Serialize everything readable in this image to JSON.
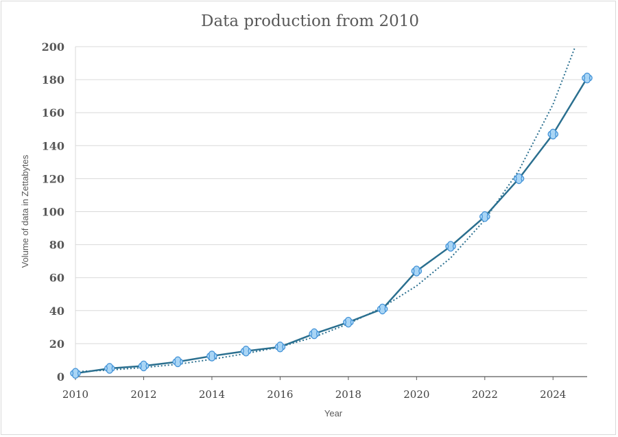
{
  "chart_data": {
    "type": "line",
    "title": "Data production from 2010",
    "xlabel": "Year",
    "ylabel": "Volume of data in Zettabytes",
    "xlim": [
      2010,
      2025
    ],
    "ylim": [
      0,
      200
    ],
    "x_ticks": [
      2010,
      2012,
      2014,
      2016,
      2018,
      2020,
      2022,
      2024
    ],
    "y_ticks": [
      0,
      20,
      40,
      60,
      80,
      100,
      120,
      140,
      160,
      180,
      200
    ],
    "grid": "horizontal",
    "legend": "none",
    "series": [
      {
        "x": [
          2010,
          2011,
          2012,
          2013,
          2014,
          2015,
          2016,
          2017,
          2018,
          2019,
          2020,
          2021,
          2022,
          2023,
          2024,
          2025
        ],
        "values": [
          2,
          5,
          6.5,
          9,
          12.5,
          15.5,
          18,
          26,
          33,
          41,
          64,
          79,
          97,
          120,
          147,
          181
        ]
      }
    ],
    "trendline": {
      "type": "exponential",
      "style": "dotted",
      "x": [
        2010,
        2011,
        2012,
        2013,
        2014,
        2015,
        2016,
        2017,
        2018,
        2019,
        2020,
        2021,
        2022,
        2023,
        2024,
        2024.65
      ],
      "values": [
        3,
        4,
        5.5,
        7.5,
        10.5,
        14,
        18,
        24,
        32,
        42,
        55,
        72,
        95,
        125,
        165,
        200
      ]
    },
    "colors": {
      "line": "#2a6f8f",
      "marker_fill": "#a9d5f5",
      "marker_stroke": "#3d8fd6",
      "grid": "#d9d9d9",
      "axis": "#595959"
    }
  }
}
